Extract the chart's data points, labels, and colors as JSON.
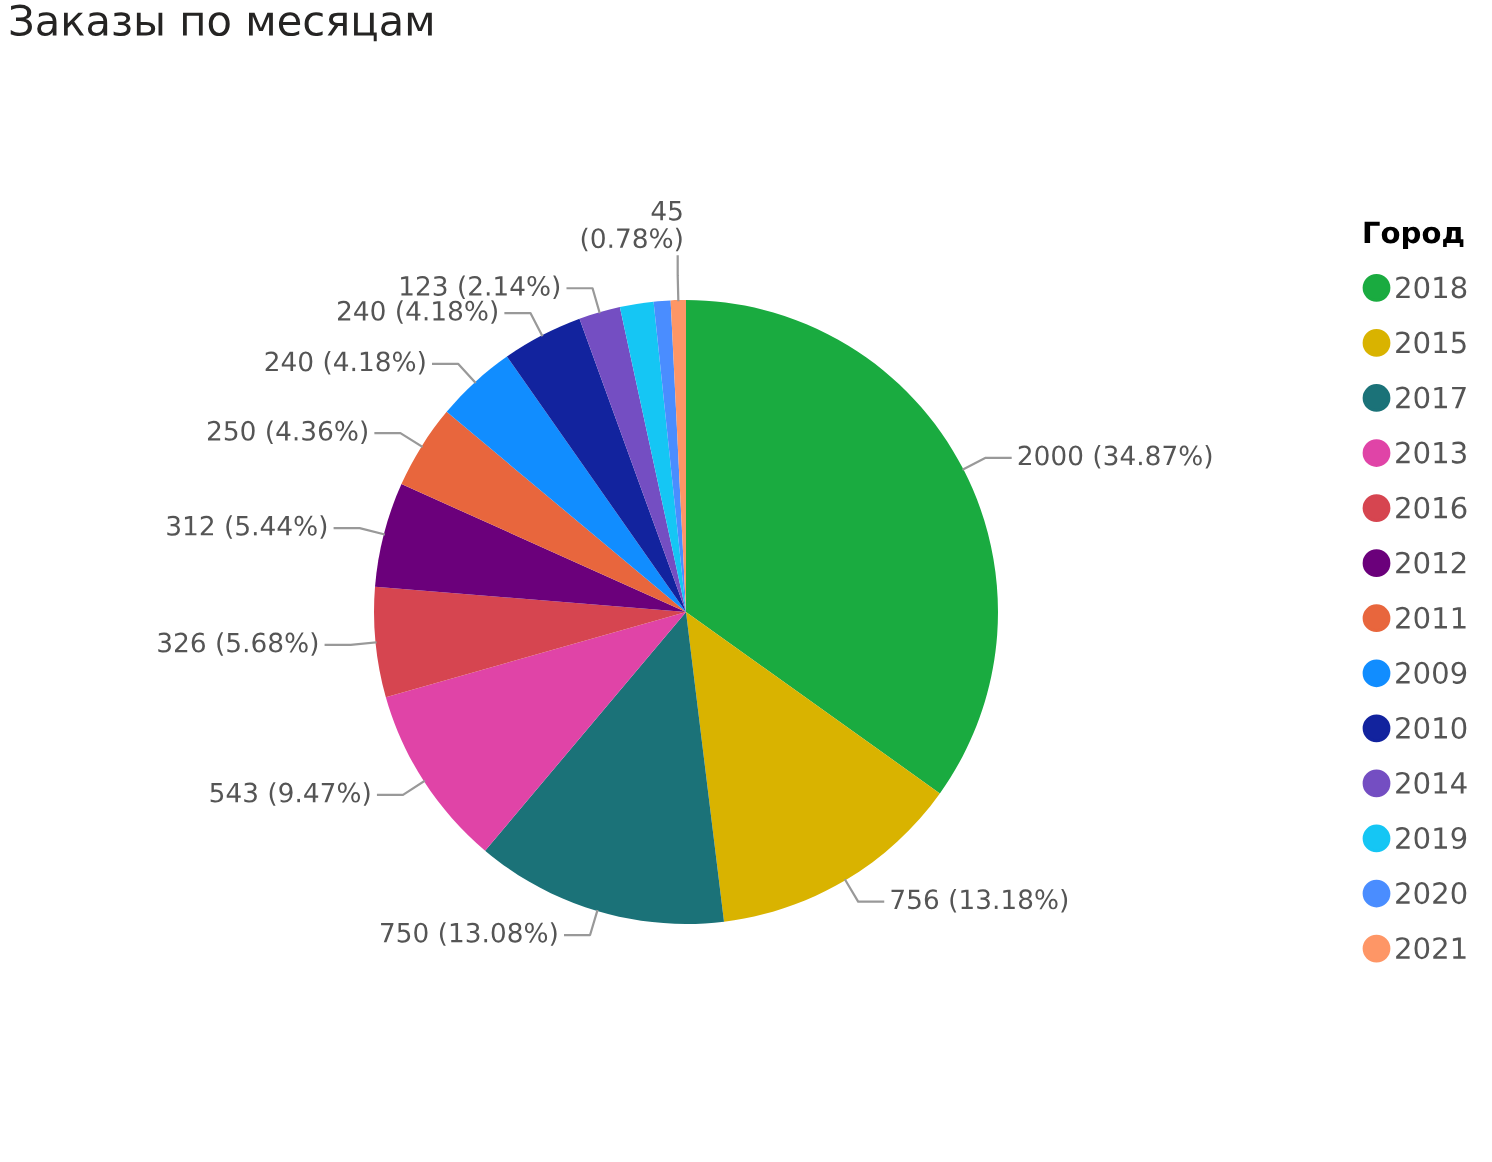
{
  "chart_data": {
    "type": "pie",
    "title": "Заказы по месяцам",
    "legend_title": "Город",
    "legend": "right",
    "categories": [
      "2018",
      "2015",
      "2017",
      "2013",
      "2016",
      "2012",
      "2011",
      "2009",
      "2010",
      "2014",
      "2019",
      "2020",
      "2021"
    ],
    "values": [
      2000,
      756,
      750,
      543,
      326,
      312,
      250,
      240,
      240,
      123,
      100,
      50,
      45
    ],
    "colors": [
      "#1aab40",
      "#d9b300",
      "#1b7278",
      "#e044a7",
      "#d64550",
      "#6b007b",
      "#e8663d",
      "#118dff",
      "#12239e",
      "#744ec2",
      "#15c6f4",
      "#4a8dff",
      "#fe9666"
    ],
    "value_labels": [
      "2000 (34.87%)",
      "756 (13.18%)",
      "750 (13.08%)",
      "543 (9.47%)",
      "326 (5.68%)",
      "312 (5.44%)",
      "250 (4.36%)",
      "240 (4.18%)",
      "240 (4.18%)",
      "123 (2.14%)",
      null,
      null,
      "45 (0.78%)"
    ]
  }
}
